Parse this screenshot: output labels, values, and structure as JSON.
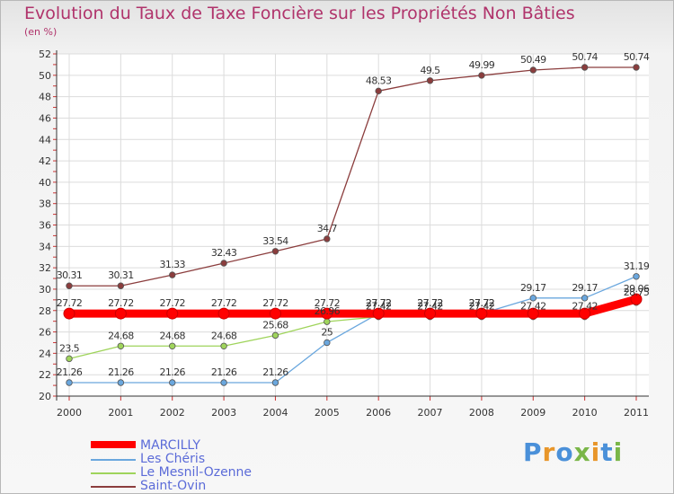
{
  "chart_data": {
    "type": "line",
    "title": "Evolution du Taux de Taxe Foncière sur les Propriétés Non Bâties",
    "subtitle": "(en %)",
    "categories": [
      "2000",
      "2001",
      "2002",
      "2003",
      "2004",
      "2005",
      "2006",
      "2007",
      "2008",
      "2009",
      "2010",
      "2011"
    ],
    "y_ticks": [
      "20",
      "22",
      "24",
      "26",
      "28",
      "30",
      "32",
      "34",
      "36",
      "38",
      "40",
      "42",
      "44",
      "46",
      "48",
      "50",
      "52"
    ],
    "ylim": [
      20,
      52
    ],
    "series": [
      {
        "name": "MARCILLY",
        "color": "#ff0000",
        "values": [
          27.72,
          27.72,
          27.72,
          27.72,
          27.72,
          27.72,
          27.72,
          27.72,
          27.72,
          27.72,
          27.72,
          29.06
        ],
        "labels": [
          "27.72",
          "27.72",
          "27.72",
          "27.72",
          "27.72",
          "27.72",
          "27.72",
          "27.72",
          "27.72",
          "",
          "",
          "29.06"
        ]
      },
      {
        "name": "Les Chéris",
        "color": "#6aa7de",
        "values": [
          21.26,
          21.26,
          21.26,
          21.26,
          21.26,
          25,
          27.72,
          27.72,
          27.72,
          29.17,
          29.17,
          31.19
        ],
        "labels": [
          "21.26",
          "21.26",
          "21.26",
          "21.26",
          "21.26",
          "25",
          "27.72",
          "27.72",
          "27.72",
          "29.17",
          "29.17",
          "31.19"
        ]
      },
      {
        "name": "Le Mesnil-Ozenne",
        "color": "#9fd45b",
        "values": [
          23.5,
          24.68,
          24.68,
          24.68,
          25.68,
          26.96,
          27.42,
          27.42,
          27.42,
          27.42,
          27.42,
          28.75
        ],
        "labels": [
          "23.5",
          "24.68",
          "24.68",
          "24.68",
          "25.68",
          "26.96",
          "27.42",
          "27.42",
          "27.42",
          "27.42",
          "27.42",
          "28.75"
        ]
      },
      {
        "name": "Saint-Ovin",
        "color": "#8b3d3d",
        "values": [
          30.31,
          30.31,
          31.33,
          32.43,
          33.54,
          34.7,
          48.53,
          49.5,
          49.99,
          50.49,
          50.74,
          50.74
        ],
        "labels": [
          "30.31",
          "30.31",
          "31.33",
          "32.43",
          "33.54",
          "34.7",
          "48.53",
          "49.5",
          "49.99",
          "50.49",
          "50.74",
          "50.74"
        ]
      }
    ],
    "grid": true,
    "legend_position": "bottom-left"
  },
  "logo": {
    "letters": [
      "P",
      "r",
      "o",
      "x",
      "i",
      "t",
      "i"
    ],
    "colors": [
      "#4a90d9",
      "#e8962a",
      "#4a90d9",
      "#7ab648",
      "#e8962a",
      "#4a90d9",
      "#7ab648"
    ]
  }
}
